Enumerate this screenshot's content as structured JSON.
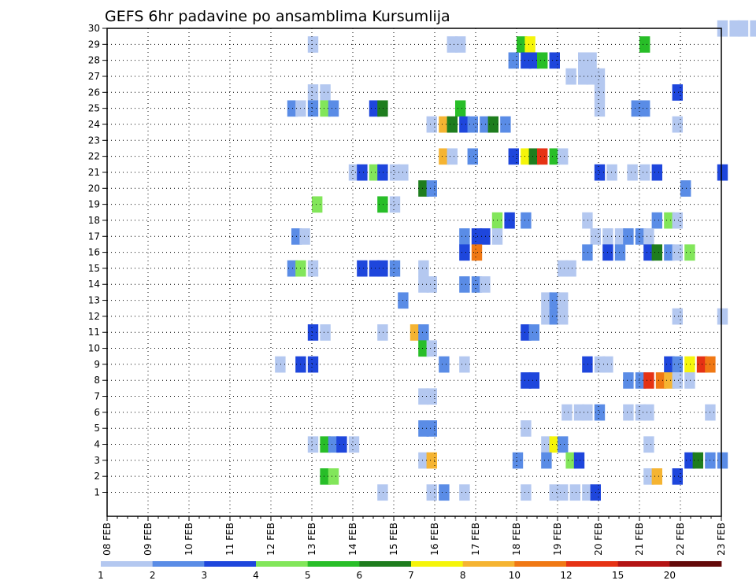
{
  "chart_data": {
    "type": "heatmap",
    "title": "GEFS 6hr padavine po ansamblima Kursumlija",
    "x_tick_labels": [
      "08 FEB",
      "09 FEB",
      "10 FEB",
      "11 FEB",
      "12 FEB",
      "13 FEB",
      "14 FEB",
      "15 FEB",
      "16 FEB",
      "17 FEB",
      "18 FEB",
      "19 FEB",
      "20 FEB",
      "21 FEB",
      "22 FEB",
      "23 FEB"
    ],
    "x_range_days": [
      8,
      23
    ],
    "y_range_members": [
      1,
      30
    ],
    "y_tick_labels": [
      "1",
      "2",
      "3",
      "4",
      "5",
      "6",
      "7",
      "8",
      "9",
      "10",
      "11",
      "12",
      "13",
      "14",
      "15",
      "16",
      "17",
      "18",
      "19",
      "20",
      "21",
      "22",
      "23",
      "24",
      "25",
      "26",
      "27",
      "28",
      "29",
      "30"
    ],
    "grid": true,
    "legend_position": "bottom",
    "legend": {
      "labels": [
        "1",
        "2",
        "3",
        "4",
        "5",
        "6",
        "7",
        "8",
        "10",
        "12",
        "15",
        "20"
      ],
      "colors": [
        "#b4c8f0",
        "#5a8ce6",
        "#1e46dc",
        "#82e65a",
        "#28be28",
        "#1e7d1e",
        "#f5f50a",
        "#f5b432",
        "#f07814",
        "#e63214",
        "#b41414",
        "#640a0a"
      ]
    },
    "cells": [
      {
        "m": 30,
        "s": [
          [
            22.9,
            1
          ],
          [
            23.2,
            1
          ],
          [
            23.4,
            1
          ],
          [
            23.7,
            1
          ]
        ]
      },
      {
        "m": 29,
        "s": [
          [
            12.9,
            1
          ],
          [
            16.3,
            1
          ],
          [
            16.5,
            1
          ],
          [
            18.0,
            5
          ],
          [
            18.2,
            7
          ],
          [
            21.0,
            5
          ]
        ]
      },
      {
        "m": 28,
        "s": [
          [
            17.8,
            2
          ],
          [
            18.1,
            3
          ],
          [
            18.3,
            3
          ],
          [
            18.5,
            5
          ],
          [
            18.8,
            3
          ],
          [
            19.5,
            1
          ],
          [
            19.7,
            1
          ]
        ]
      },
      {
        "m": 27,
        "s": [
          [
            19.2,
            1
          ],
          [
            19.5,
            1
          ],
          [
            19.7,
            1
          ],
          [
            19.9,
            1
          ]
        ]
      },
      {
        "m": 26,
        "s": [
          [
            12.9,
            1
          ],
          [
            13.2,
            1
          ],
          [
            19.9,
            1
          ],
          [
            21.8,
            3
          ]
        ]
      },
      {
        "m": 25,
        "s": [
          [
            12.4,
            2
          ],
          [
            12.6,
            1
          ],
          [
            12.9,
            2
          ],
          [
            13.2,
            4
          ],
          [
            13.4,
            2
          ],
          [
            14.4,
            3
          ],
          [
            14.6,
            6
          ],
          [
            16.5,
            5
          ],
          [
            19.9,
            1
          ],
          [
            20.8,
            2
          ],
          [
            21.0,
            2
          ]
        ]
      },
      {
        "m": 24,
        "s": [
          [
            15.8,
            1
          ],
          [
            16.1,
            8
          ],
          [
            16.3,
            6
          ],
          [
            16.6,
            3
          ],
          [
            16.8,
            2
          ],
          [
            17.1,
            2
          ],
          [
            17.3,
            6
          ],
          [
            17.6,
            2
          ],
          [
            21.8,
            1
          ]
        ]
      },
      {
        "m": 22,
        "s": [
          [
            16.1,
            8
          ],
          [
            16.3,
            1
          ],
          [
            16.8,
            2
          ],
          [
            17.8,
            3
          ],
          [
            18.1,
            7
          ],
          [
            18.3,
            6
          ],
          [
            18.5,
            10
          ],
          [
            18.8,
            5
          ],
          [
            19.0,
            1
          ]
        ]
      },
      {
        "m": 21,
        "s": [
          [
            13.9,
            1
          ],
          [
            14.1,
            3
          ],
          [
            14.4,
            4
          ],
          [
            14.6,
            3
          ],
          [
            14.9,
            1
          ],
          [
            15.1,
            1
          ],
          [
            19.9,
            3
          ],
          [
            20.2,
            1
          ],
          [
            20.7,
            1
          ],
          [
            21.0,
            1
          ],
          [
            21.3,
            3
          ],
          [
            22.9,
            3
          ]
        ]
      },
      {
        "m": 20,
        "s": [
          [
            15.6,
            6
          ],
          [
            15.8,
            2
          ],
          [
            22.0,
            2
          ]
        ]
      },
      {
        "m": 19,
        "s": [
          [
            13.0,
            4
          ],
          [
            14.6,
            5
          ],
          [
            14.9,
            1
          ]
        ]
      },
      {
        "m": 18,
        "s": [
          [
            17.4,
            4
          ],
          [
            17.7,
            3
          ],
          [
            18.1,
            2
          ],
          [
            19.6,
            1
          ],
          [
            21.3,
            2
          ],
          [
            21.6,
            4
          ],
          [
            21.8,
            1
          ]
        ]
      },
      {
        "m": 17,
        "s": [
          [
            12.5,
            2
          ],
          [
            12.7,
            1
          ],
          [
            16.6,
            2
          ],
          [
            16.9,
            3
          ],
          [
            17.1,
            3
          ],
          [
            17.4,
            1
          ],
          [
            19.8,
            1
          ],
          [
            20.1,
            1
          ],
          [
            20.4,
            1
          ],
          [
            20.6,
            2
          ],
          [
            20.9,
            2
          ],
          [
            21.1,
            1
          ]
        ]
      },
      {
        "m": 16,
        "s": [
          [
            16.6,
            3
          ],
          [
            16.9,
            9
          ],
          [
            19.6,
            2
          ],
          [
            20.1,
            3
          ],
          [
            20.4,
            2
          ],
          [
            21.1,
            3
          ],
          [
            21.3,
            6
          ],
          [
            21.6,
            2
          ],
          [
            21.8,
            1
          ],
          [
            22.1,
            4
          ]
        ]
      },
      {
        "m": 15,
        "s": [
          [
            12.4,
            2
          ],
          [
            12.6,
            4
          ],
          [
            12.9,
            1
          ],
          [
            14.1,
            3
          ],
          [
            14.4,
            3
          ],
          [
            14.6,
            3
          ],
          [
            14.9,
            2
          ],
          [
            15.6,
            1
          ],
          [
            19.0,
            1
          ],
          [
            19.2,
            1
          ]
        ]
      },
      {
        "m": 14,
        "s": [
          [
            15.6,
            1
          ],
          [
            15.8,
            1
          ],
          [
            16.6,
            2
          ],
          [
            16.9,
            2
          ],
          [
            17.1,
            1
          ]
        ]
      },
      {
        "m": 13,
        "s": [
          [
            15.1,
            2
          ],
          [
            18.6,
            1
          ],
          [
            18.8,
            2
          ],
          [
            19.0,
            1
          ]
        ]
      },
      {
        "m": 12,
        "s": [
          [
            18.6,
            1
          ],
          [
            18.8,
            2
          ],
          [
            19.0,
            1
          ],
          [
            21.8,
            1
          ],
          [
            22.9,
            1
          ]
        ]
      },
      {
        "m": 11,
        "s": [
          [
            12.9,
            3
          ],
          [
            13.2,
            1
          ],
          [
            14.6,
            1
          ],
          [
            15.4,
            8
          ],
          [
            15.6,
            2
          ],
          [
            18.1,
            3
          ],
          [
            18.3,
            2
          ]
        ]
      },
      {
        "m": 10,
        "s": [
          [
            15.6,
            5
          ],
          [
            15.8,
            1
          ]
        ]
      },
      {
        "m": 9,
        "s": [
          [
            12.1,
            1
          ],
          [
            12.6,
            3
          ],
          [
            12.9,
            3
          ],
          [
            16.1,
            2
          ],
          [
            16.6,
            1
          ],
          [
            19.6,
            3
          ],
          [
            19.9,
            1
          ],
          [
            20.1,
            1
          ],
          [
            21.6,
            3
          ],
          [
            21.8,
            2
          ],
          [
            22.1,
            7
          ],
          [
            22.4,
            10
          ],
          [
            22.6,
            9
          ]
        ]
      },
      {
        "m": 8,
        "s": [
          [
            18.1,
            3
          ],
          [
            18.3,
            3
          ],
          [
            20.6,
            2
          ],
          [
            20.9,
            2
          ],
          [
            21.1,
            10
          ],
          [
            21.4,
            9
          ],
          [
            21.6,
            8
          ],
          [
            21.8,
            1
          ],
          [
            22.1,
            1
          ]
        ]
      },
      {
        "m": 7,
        "s": [
          [
            15.6,
            1
          ],
          [
            15.8,
            1
          ]
        ]
      },
      {
        "m": 6,
        "s": [
          [
            19.1,
            1
          ],
          [
            19.4,
            1
          ],
          [
            19.6,
            1
          ],
          [
            19.9,
            2
          ],
          [
            20.6,
            1
          ],
          [
            20.9,
            1
          ],
          [
            21.1,
            1
          ],
          [
            22.6,
            1
          ]
        ]
      },
      {
        "m": 5,
        "s": [
          [
            15.6,
            2
          ],
          [
            15.8,
            2
          ],
          [
            18.1,
            1
          ]
        ]
      },
      {
        "m": 4,
        "s": [
          [
            12.9,
            1
          ],
          [
            13.2,
            5
          ],
          [
            13.4,
            2
          ],
          [
            13.6,
            3
          ],
          [
            13.9,
            1
          ],
          [
            18.6,
            1
          ],
          [
            18.8,
            7
          ],
          [
            19.0,
            2
          ],
          [
            21.1,
            1
          ]
        ]
      },
      {
        "m": 3,
        "s": [
          [
            15.6,
            1
          ],
          [
            15.8,
            8
          ],
          [
            17.9,
            2
          ],
          [
            18.6,
            2
          ],
          [
            19.2,
            4
          ],
          [
            19.4,
            3
          ],
          [
            22.1,
            3
          ],
          [
            22.3,
            6
          ],
          [
            22.6,
            2
          ],
          [
            22.9,
            2
          ]
        ]
      },
      {
        "m": 2,
        "s": [
          [
            13.2,
            5
          ],
          [
            13.4,
            4
          ],
          [
            21.1,
            1
          ],
          [
            21.3,
            8
          ],
          [
            21.8,
            3
          ]
        ]
      },
      {
        "m": 1,
        "s": [
          [
            14.6,
            1
          ],
          [
            15.8,
            1
          ],
          [
            16.1,
            2
          ],
          [
            16.6,
            1
          ],
          [
            18.1,
            1
          ],
          [
            18.8,
            1
          ],
          [
            19.0,
            1
          ],
          [
            19.3,
            1
          ],
          [
            19.6,
            1
          ],
          [
            19.8,
            3
          ]
        ]
      }
    ]
  }
}
